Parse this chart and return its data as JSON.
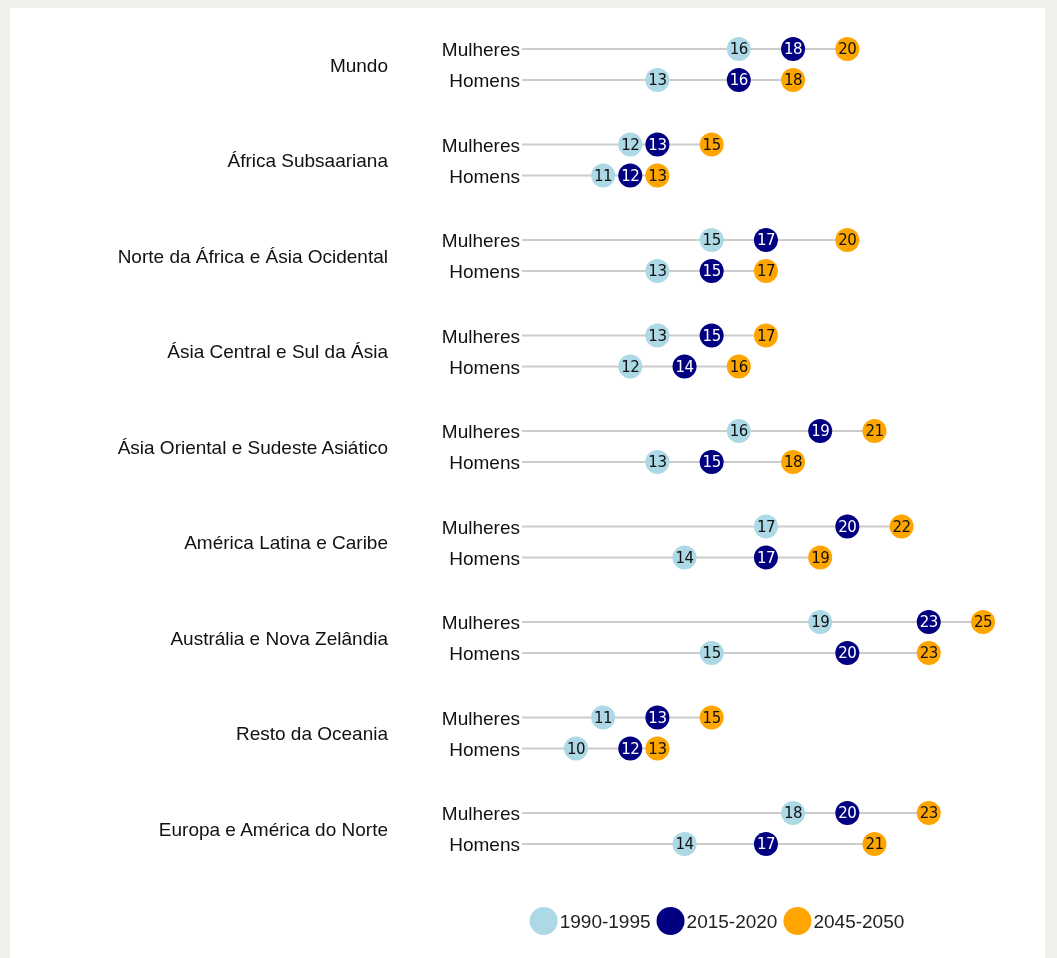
{
  "chart_data": [
    {
      "type": "scatter",
      "orientation": "horizontal",
      "title": "Mundo",
      "categories": [
        "Mulheres",
        "Homens"
      ],
      "data_labels": true,
      "series": [
        {
          "color": "#add8e6",
          "values": [
            16,
            13
          ]
        },
        {
          "color": "#000080",
          "values": [
            18,
            16
          ]
        },
        {
          "color": "#ffa500",
          "values": [
            20,
            18
          ]
        }
      ]
    },
    {
      "type": "scatter",
      "orientation": "horizontal",
      "title": "África Subsaariana",
      "categories": [
        "Mulheres",
        "Homens"
      ],
      "data_labels": true,
      "series": [
        {
          "color": "#add8e6",
          "values": [
            12,
            11
          ]
        },
        {
          "color": "#000080",
          "values": [
            13,
            12
          ]
        },
        {
          "color": "#ffa500",
          "values": [
            15,
            13
          ]
        }
      ]
    },
    {
      "type": "scatter",
      "orientation": "horizontal",
      "title": "Norte da África e Ásia Ocidental",
      "categories": [
        "Mulheres",
        "Homens"
      ],
      "data_labels": true,
      "series": [
        {
          "color": "#add8e6",
          "values": [
            15,
            13
          ]
        },
        {
          "color": "#000080",
          "values": [
            17,
            15
          ]
        },
        {
          "color": "#ffa500",
          "values": [
            20,
            17
          ]
        }
      ]
    },
    {
      "type": "scatter",
      "orientation": "horizontal",
      "title": "Ásia Central e Sul da Ásia",
      "categories": [
        "Mulheres",
        "Homens"
      ],
      "data_labels": true,
      "series": [
        {
          "color": "#add8e6",
          "values": [
            13,
            12
          ]
        },
        {
          "color": "#000080",
          "values": [
            15,
            14
          ]
        },
        {
          "color": "#ffa500",
          "values": [
            17,
            16
          ]
        }
      ]
    },
    {
      "type": "scatter",
      "orientation": "horizontal",
      "title": "Ásia Oriental e Sudeste Asiático",
      "categories": [
        "Mulheres",
        "Homens"
      ],
      "data_labels": true,
      "series": [
        {
          "color": "#add8e6",
          "values": [
            16,
            13
          ]
        },
        {
          "color": "#000080",
          "values": [
            19,
            15
          ]
        },
        {
          "color": "#ffa500",
          "values": [
            21,
            18
          ]
        }
      ]
    },
    {
      "type": "scatter",
      "orientation": "horizontal",
      "title": "América Latina e Caribe",
      "categories": [
        "Mulheres",
        "Homens"
      ],
      "data_labels": true,
      "series": [
        {
          "color": "#add8e6",
          "values": [
            17,
            14
          ]
        },
        {
          "color": "#000080",
          "values": [
            20,
            17
          ]
        },
        {
          "color": "#ffa500",
          "values": [
            22,
            19
          ]
        }
      ]
    },
    {
      "type": "scatter",
      "orientation": "horizontal",
      "title": "Austrália e Nova Zelândia",
      "categories": [
        "Mulheres",
        "Homens"
      ],
      "data_labels": true,
      "series": [
        {
          "color": "#add8e6",
          "values": [
            19,
            15
          ]
        },
        {
          "color": "#000080",
          "values": [
            23,
            20
          ]
        },
        {
          "color": "#ffa500",
          "values": [
            25,
            23
          ]
        }
      ]
    },
    {
      "type": "scatter",
      "orientation": "horizontal",
      "title": "Resto da Oceania",
      "categories": [
        "Mulheres",
        "Homens"
      ],
      "data_labels": true,
      "series": [
        {
          "color": "#add8e6",
          "values": [
            11,
            10
          ]
        },
        {
          "color": "#000080",
          "values": [
            13,
            12
          ]
        },
        {
          "color": "#ffa500",
          "values": [
            15,
            13
          ]
        }
      ]
    },
    {
      "type": "scatter",
      "orientation": "horizontal",
      "title": "Europa e América do Norte",
      "categories": [
        "Mulheres",
        "Homens"
      ],
      "data_labels": true,
      "legend": "bottom",
      "series": [
        {
          "name": "1990-1995",
          "color": "#add8e6",
          "values": [
            18,
            14
          ]
        },
        {
          "name": "2015-2020",
          "color": "#000080",
          "values": [
            20,
            17
          ]
        },
        {
          "name": "2045-2050",
          "color": "#ffa500",
          "values": [
            23,
            21
          ]
        }
      ]
    }
  ]
}
